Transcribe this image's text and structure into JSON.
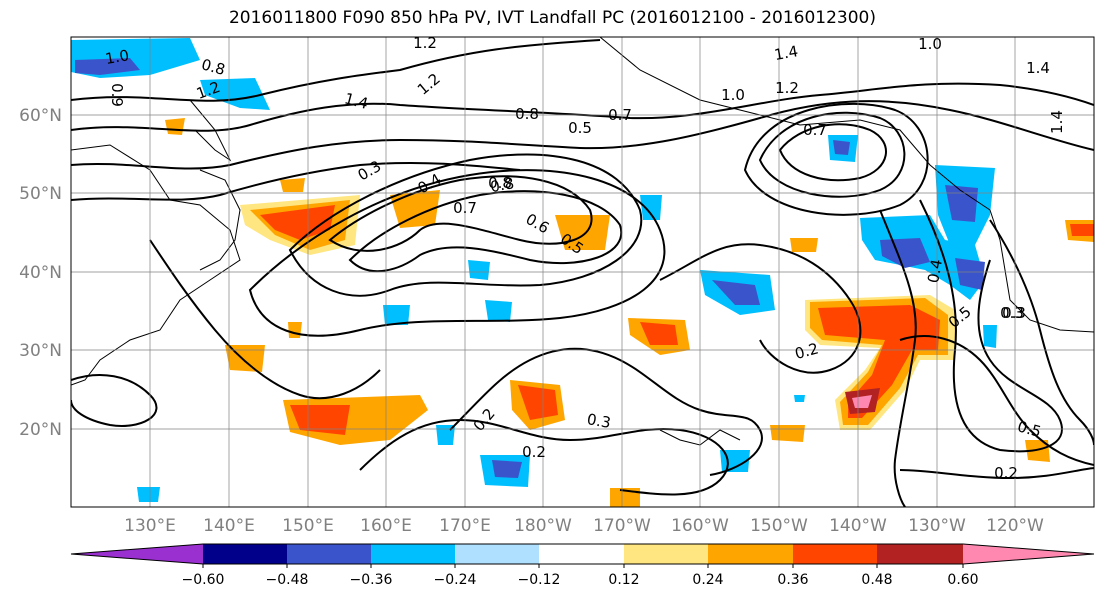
{
  "title": "2016011800 F090 850 hPa PV, IVT Landfall PC (2016012100 - 2016012300)",
  "lat_labels": [
    "60°N",
    "50°N",
    "40°N",
    "30°N",
    "20°N"
  ],
  "lon_labels": [
    "130°E",
    "140°E",
    "150°E",
    "160°E",
    "170°E",
    "180°W",
    "170°W",
    "160°W",
    "150°W",
    "140°W",
    "130°W",
    "120°W"
  ],
  "contour_labels": [
    "1.0",
    "0.8",
    "0.9",
    "1.2",
    "1.2",
    "1.4",
    "1.2",
    "1.4",
    "1.0",
    "1.4",
    "1.0",
    "1.2",
    "0.8",
    "0.5",
    "0.7",
    "0.7",
    "0.8",
    "0.3",
    "0.4",
    "0.8",
    "0.7",
    "0.6",
    "0.5",
    "0.3",
    "0.2",
    "0.2",
    "0.3",
    "0.2",
    "0.4",
    "0.5",
    "0.3",
    "0.5",
    "0.2",
    "1.4"
  ],
  "colorbar": {
    "ticks": [
      "−0.60",
      "−0.48",
      "−0.36",
      "−0.24",
      "−0.12",
      "0.12",
      "0.24",
      "0.36",
      "0.48",
      "0.60"
    ],
    "colors": [
      "#9b30d0",
      "#00008b",
      "#3a55cc",
      "#00bfff",
      "#b0e0ff",
      "#ffffff",
      "#ffe680",
      "#ffa500",
      "#ff4500",
      "#b22222",
      "#ff88b0",
      "#ffffff"
    ]
  }
}
